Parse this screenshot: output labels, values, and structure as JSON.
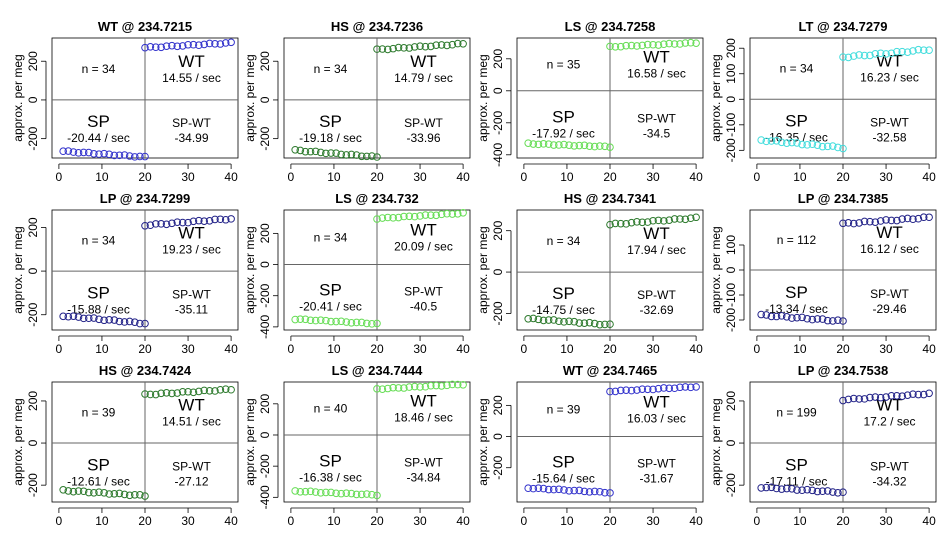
{
  "chart_data": [
    {
      "type": "scatter",
      "title": "WT @ 234.7215",
      "ylabel": "approx. per meg",
      "xlim": [
        0,
        40
      ],
      "ylim": [
        -300,
        320
      ],
      "yticks": [
        -200,
        0,
        200
      ],
      "xticks": [
        0,
        10,
        20,
        30,
        40
      ],
      "n_label": "n = 34",
      "wt_label": "WT",
      "wt_rate": "14.55 / sec",
      "sp_label": "SP",
      "sp_rate": "-20.44 / sec",
      "diff_label": "SP-WT",
      "diff_value": "-34.99",
      "color": "#3333cc",
      "sp_x": [
        1,
        20
      ],
      "sp_y": [
        -265,
        -295
      ],
      "wt_x": [
        20,
        40
      ],
      "wt_y": [
        270,
        295
      ]
    },
    {
      "type": "scatter",
      "title": "HS @ 234.7236",
      "ylabel": "approx. per meg",
      "xlim": [
        0,
        40
      ],
      "ylim": [
        -300,
        320
      ],
      "yticks": [
        -200,
        0,
        200
      ],
      "xticks": [
        0,
        10,
        20,
        30,
        40
      ],
      "n_label": "n = 34",
      "wt_label": "WT",
      "wt_rate": "14.79 / sec",
      "sp_label": "SP",
      "sp_rate": "-19.18 / sec",
      "diff_label": "SP-WT",
      "diff_value": "-33.96",
      "color": "#2d7a2d",
      "sp_x": [
        1,
        20
      ],
      "sp_y": [
        -260,
        -295
      ],
      "wt_x": [
        20,
        40
      ],
      "wt_y": [
        260,
        290
      ]
    },
    {
      "type": "scatter",
      "title": "LS @ 234.7258",
      "ylabel": "approx. per meg",
      "xlim": [
        0,
        40
      ],
      "ylim": [
        -420,
        330
      ],
      "yticks": [
        -400,
        -200,
        0,
        200
      ],
      "xticks": [
        0,
        10,
        20,
        30,
        40
      ],
      "n_label": "n = 35",
      "wt_label": "WT",
      "wt_rate": "16.58 / sec",
      "sp_label": "SP",
      "sp_rate": "-17.92 / sec",
      "diff_label": "SP-WT",
      "diff_value": "-34.5",
      "color": "#66dd55",
      "sp_x": [
        1,
        20
      ],
      "sp_y": [
        -330,
        -350
      ],
      "wt_x": [
        20,
        40
      ],
      "wt_y": [
        275,
        300
      ]
    },
    {
      "type": "scatter",
      "title": "LT @ 234.7279",
      "ylabel": "approx. per meg",
      "xlim": [
        0,
        40
      ],
      "ylim": [
        -230,
        240
      ],
      "yticks": [
        -200,
        -100,
        0,
        100,
        200
      ],
      "xticks": [
        0,
        10,
        20,
        30,
        40
      ],
      "n_label": "n = 34",
      "wt_label": "WT",
      "wt_rate": "16.23 / sec",
      "sp_label": "SP",
      "sp_rate": "-16.35 / sec",
      "diff_label": "SP-WT",
      "diff_value": "-32.58",
      "color": "#44dddd",
      "sp_x": [
        1,
        20
      ],
      "sp_y": [
        -160,
        -190
      ],
      "wt_x": [
        20,
        40
      ],
      "wt_y": [
        165,
        195
      ]
    },
    {
      "type": "scatter",
      "title": "LP @ 234.7299",
      "ylabel": "approx. per meg",
      "xlim": [
        0,
        40
      ],
      "ylim": [
        -270,
        280
      ],
      "yticks": [
        -200,
        0,
        200
      ],
      "xticks": [
        0,
        10,
        20,
        30,
        40
      ],
      "n_label": "n = 34",
      "wt_label": "WT",
      "wt_rate": "19.23 / sec",
      "sp_label": "SP",
      "sp_rate": "-15.88 / sec",
      "diff_label": "SP-WT",
      "diff_value": "-35.11",
      "color": "#222288",
      "sp_x": [
        1,
        20
      ],
      "sp_y": [
        -205,
        -240
      ],
      "wt_x": [
        20,
        40
      ],
      "wt_y": [
        210,
        240
      ]
    },
    {
      "type": "scatter",
      "title": "LS @ 234.732",
      "ylabel": "approx. per meg",
      "xlim": [
        0,
        40
      ],
      "ylim": [
        -420,
        350
      ],
      "yticks": [
        -400,
        -200,
        0,
        200
      ],
      "xticks": [
        0,
        10,
        20,
        30,
        40
      ],
      "n_label": "n = 34",
      "wt_label": "WT",
      "wt_rate": "20.09 / sec",
      "sp_label": "SP",
      "sp_rate": "-20.41 / sec",
      "diff_label": "SP-WT",
      "diff_value": "-40.5",
      "color": "#66dd55",
      "sp_x": [
        1,
        20
      ],
      "sp_y": [
        -350,
        -380
      ],
      "wt_x": [
        20,
        40
      ],
      "wt_y": [
        295,
        330
      ]
    },
    {
      "type": "scatter",
      "title": "HS @ 234.7341",
      "ylabel": "approx. per meg",
      "xlim": [
        0,
        40
      ],
      "ylim": [
        -280,
        300
      ],
      "yticks": [
        -200,
        0,
        200
      ],
      "xticks": [
        0,
        10,
        20,
        30,
        40
      ],
      "n_label": "n = 34",
      "wt_label": "WT",
      "wt_rate": "17.94 / sec",
      "sp_label": "SP",
      "sp_rate": "-14.75 / sec",
      "diff_label": "SP-WT",
      "diff_value": "-32.69",
      "color": "#2d7a2d",
      "sp_x": [
        1,
        20
      ],
      "sp_y": [
        -225,
        -255
      ],
      "wt_x": [
        20,
        40
      ],
      "wt_y": [
        230,
        262
      ]
    },
    {
      "type": "scatter",
      "title": "LP @ 234.7385",
      "ylabel": "approx. per meg",
      "xlim": [
        0,
        40
      ],
      "ylim": [
        -240,
        240
      ],
      "yticks": [
        -200,
        -100,
        0,
        100
      ],
      "xticks": [
        0,
        10,
        20,
        30,
        40
      ],
      "n_label": "n = 112",
      "wt_label": "WT",
      "wt_rate": "16.12 / sec",
      "sp_label": "SP",
      "sp_rate": "-13.34 / sec",
      "diff_label": "SP-WT",
      "diff_value": "-29.46",
      "color": "#222288",
      "sp_x": [
        1,
        20
      ],
      "sp_y": [
        -180,
        -205
      ],
      "wt_x": [
        20,
        40
      ],
      "wt_y": [
        185,
        210
      ]
    },
    {
      "type": "scatter",
      "title": "HS @ 234.7424",
      "ylabel": "approx. per meg",
      "xlim": [
        0,
        40
      ],
      "ylim": [
        -280,
        290
      ],
      "yticks": [
        -200,
        0,
        200
      ],
      "xticks": [
        0,
        10,
        20,
        30,
        40
      ],
      "n_label": "n = 39",
      "wt_label": "WT",
      "wt_rate": "14.51 / sec",
      "sp_label": "SP",
      "sp_rate": "-12.61 / sec",
      "diff_label": "SP-WT",
      "diff_value": "-27.12",
      "color": "#2d7a2d",
      "sp_x": [
        1,
        20
      ],
      "sp_y": [
        -225,
        -250
      ],
      "wt_x": [
        20,
        40
      ],
      "wt_y": [
        230,
        255
      ]
    },
    {
      "type": "scatter",
      "title": "LS @ 234.7444",
      "ylabel": "approx. per meg",
      "xlim": [
        0,
        40
      ],
      "ylim": [
        -430,
        340
      ],
      "yticks": [
        -400,
        -200,
        0,
        200
      ],
      "xticks": [
        0,
        10,
        20,
        30,
        40
      ],
      "n_label": "n = 40",
      "wt_label": "WT",
      "wt_rate": "18.46 / sec",
      "sp_label": "SP",
      "sp_rate": "-16.38 / sec",
      "diff_label": "SP-WT",
      "diff_value": "-34.84",
      "color": "#66dd55",
      "sp_x": [
        1,
        20
      ],
      "sp_y": [
        -360,
        -385
      ],
      "wt_x": [
        20,
        40
      ],
      "wt_y": [
        295,
        325
      ]
    },
    {
      "type": "scatter",
      "title": "WT @ 234.7465",
      "ylabel": "approx. per meg",
      "xlim": [
        0,
        40
      ],
      "ylim": [
        -420,
        350
      ],
      "yticks": [
        -200,
        0,
        200
      ],
      "xticks": [
        0,
        10,
        20,
        30,
        40
      ],
      "n_label": "n = 39",
      "wt_label": "WT",
      "wt_rate": "16.03 / sec",
      "sp_label": "SP",
      "sp_rate": "-15.64 / sec",
      "diff_label": "SP-WT",
      "diff_value": "-31.67",
      "color": "#3333cc",
      "sp_x": [
        1,
        20
      ],
      "sp_y": [
        -330,
        -360
      ],
      "wt_x": [
        20,
        40
      ],
      "wt_y": [
        290,
        320
      ]
    },
    {
      "type": "scatter",
      "title": "LP @ 234.7538",
      "ylabel": "approx. per meg",
      "xlim": [
        0,
        40
      ],
      "ylim": [
        -280,
        290
      ],
      "yticks": [
        -200,
        0,
        200
      ],
      "xticks": [
        0,
        10,
        20,
        30,
        40
      ],
      "n_label": "n = 199",
      "wt_label": "WT",
      "wt_rate": "17.2 / sec",
      "sp_label": "SP",
      "sp_rate": "-17.11 / sec",
      "diff_label": "SP-WT",
      "diff_value": "-34.32",
      "color": "#222288",
      "sp_x": [
        1,
        20
      ],
      "sp_y": [
        -210,
        -235
      ],
      "wt_x": [
        20,
        40
      ],
      "wt_y": [
        205,
        235
      ]
    }
  ]
}
